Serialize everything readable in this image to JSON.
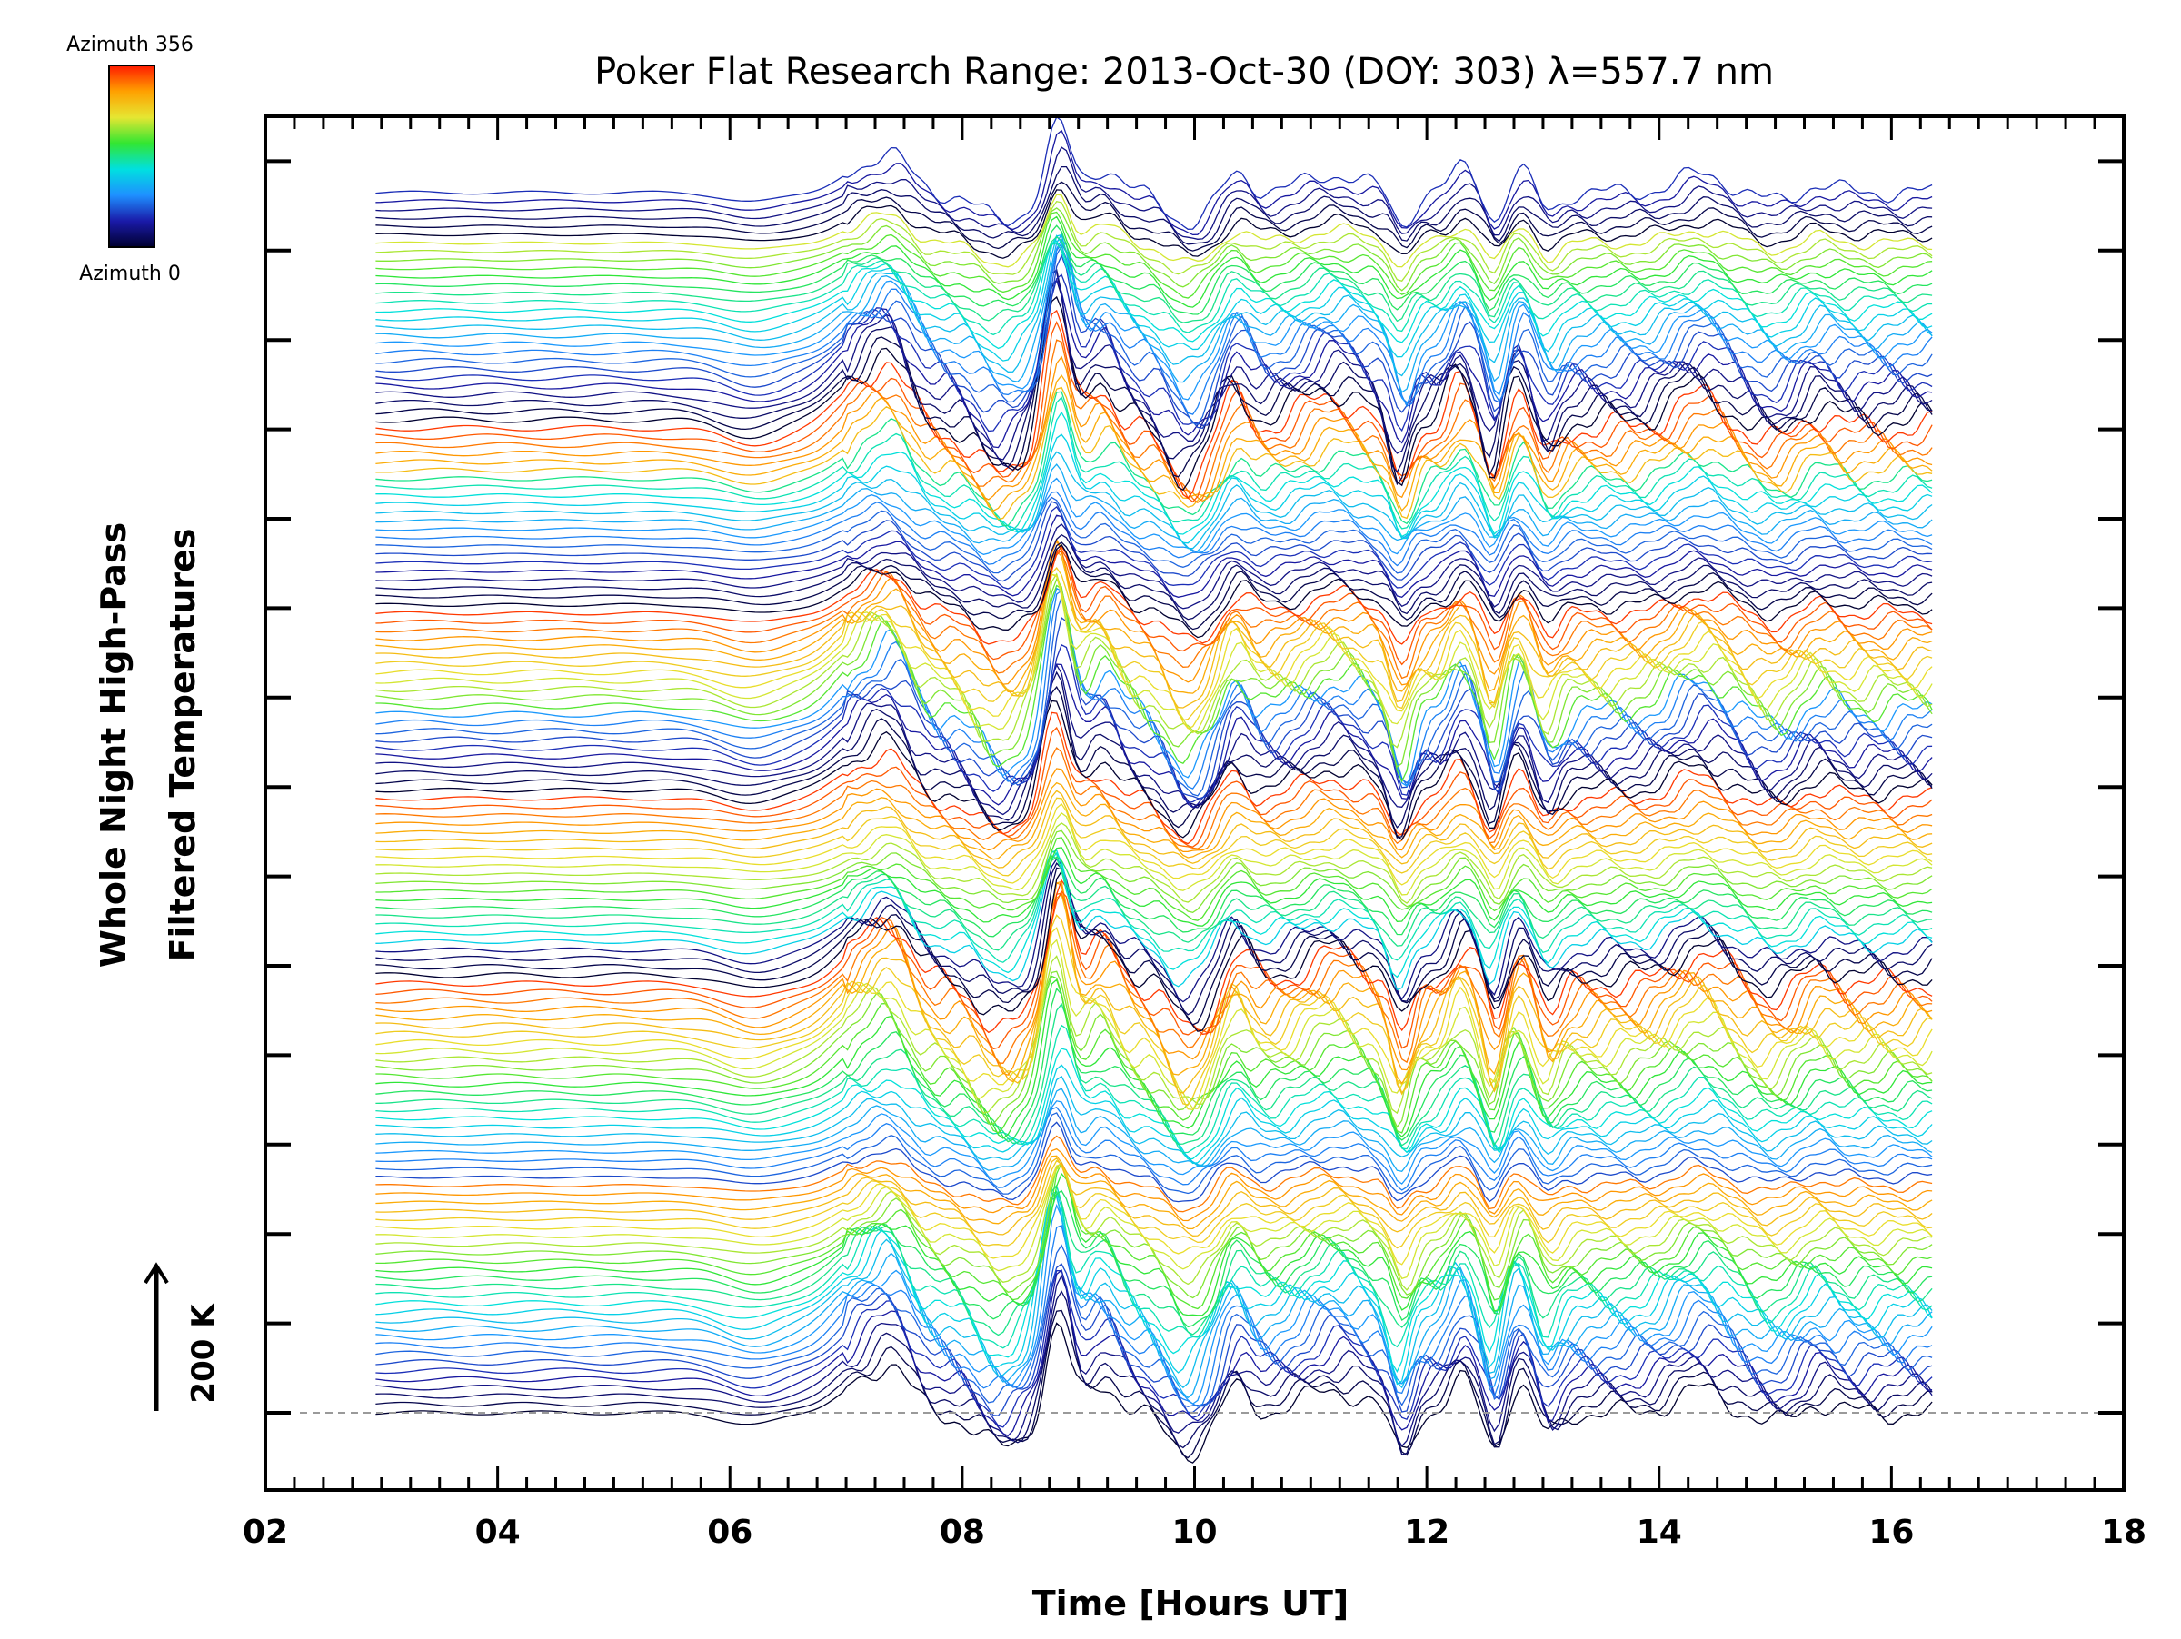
{
  "chart_data": {
    "type": "line",
    "title": "Poker Flat Research Range: 2013-Oct-30 (DOY: 303) λ=557.7 nm",
    "xlabel": "Time [Hours UT]",
    "ylabel_line1": "Whole Night High-Pass",
    "ylabel_line2": "Filtered Temperatures",
    "xlim": [
      2,
      18
    ],
    "x_data_range": [
      2.95,
      16.35
    ],
    "x_tick_labels": [
      "02",
      "04",
      "06",
      "08",
      "10",
      "12",
      "14",
      "16",
      "18"
    ],
    "scale_bar_label": "200 K",
    "scale_bar_value_K": 200,
    "trace_count": 146,
    "azimuth_range": [
      0,
      356
    ],
    "colorbar_top_label": "Azimuth 356",
    "colorbar_bottom_label": "Azimuth 0",
    "colormap": "rainbow",
    "baseline": "dashed",
    "common_features": [
      {
        "time": 6.2,
        "amp": -0.3,
        "width": 0.35
      },
      {
        "time": 7.1,
        "amp": 0.7,
        "width": 0.28
      },
      {
        "time": 7.4,
        "amp": 1.0,
        "width": 0.22
      },
      {
        "time": 8.35,
        "amp": -0.9,
        "width": 0.3
      },
      {
        "time": 8.82,
        "amp": 2.3,
        "width": 0.14
      },
      {
        "time": 9.2,
        "amp": 0.8,
        "width": 0.18
      },
      {
        "time": 9.95,
        "amp": -1.0,
        "width": 0.25
      },
      {
        "time": 10.35,
        "amp": 0.7,
        "width": 0.15
      },
      {
        "time": 11.2,
        "amp": 0.6,
        "width": 0.35
      },
      {
        "time": 11.78,
        "amp": -1.1,
        "width": 0.12
      },
      {
        "time": 12.3,
        "amp": 0.8,
        "width": 0.14
      },
      {
        "time": 12.58,
        "amp": -0.9,
        "width": 0.1
      },
      {
        "time": 12.8,
        "amp": 0.7,
        "width": 0.12
      },
      {
        "time": 13.05,
        "amp": -0.6,
        "width": 0.12
      },
      {
        "time": 14.35,
        "amp": 0.6,
        "width": 0.3
      },
      {
        "time": 15.0,
        "amp": -0.3,
        "width": 0.25
      },
      {
        "time": 15.35,
        "amp": 0.3,
        "width": 0.2
      }
    ],
    "colors": {
      "axis": "#000000",
      "baseline": "#9a9a9a",
      "colorbar_stops": [
        "#000030",
        "#1a1aa8",
        "#1e90ff",
        "#00e0e0",
        "#32e632",
        "#e6e632",
        "#ffa000",
        "#ff1a00"
      ]
    }
  }
}
